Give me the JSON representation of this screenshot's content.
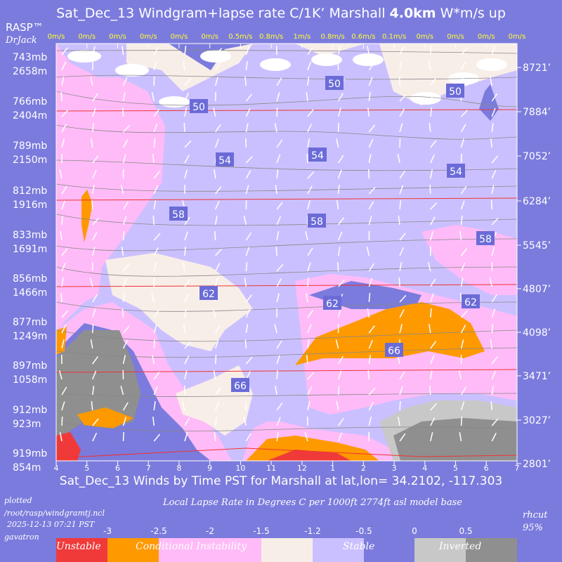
{
  "header": {
    "title_pre": "Sat_Dec_13 Windgram+lapse rate C/1K’  Marshall ",
    "title_bold": "4.0km",
    "title_post": "  W*m/s up",
    "brand": "RASP™",
    "brand_sub": "DrJack"
  },
  "footer": {
    "bottom_title": "Sat_Dec_13 Winds by Time PST for Marshall at lat,lon= 34.2102, -117.303",
    "plotted": "plotted",
    "path": "/root/rasp/windgramtj.ncl",
    "timestamp": "2025-12-13 07:21 PST",
    "host": "gavatron",
    "rhcut": "rhcut",
    "rhcut_val": "95%",
    "legend_title": "Local Lapse Rate in Degrees C per 1000ft  2774ft asl model base"
  },
  "legend": {
    "ticks": [
      "-3",
      "-2.5",
      "-2",
      "-1.5",
      "-1.2",
      "-0.5",
      "0",
      "0.5"
    ],
    "categories": [
      "Unstable",
      "Conditional Instability",
      "Stable",
      "Inverted"
    ],
    "colors": [
      "#f03a3a",
      "#ff9900",
      "#ffbbf7",
      "#f8eee8",
      "#cbc0ff",
      "#7b7bdd",
      "#c8c8c8",
      "#8f8f8f"
    ]
  },
  "chart_data": {
    "type": "heatmap",
    "title": "Sat_Dec_13 Windgram+lapse rate C/1K’ Marshall 4.0km W*m/s up",
    "x_ticks": [
      "4",
      "5",
      "6",
      "7",
      "8",
      "9",
      "10",
      "11",
      "12",
      "1",
      "2",
      "3",
      "4",
      "5",
      "6",
      "7"
    ],
    "top_wstar": [
      "0m/s",
      "0m/s",
      "0m/s",
      "0m/s",
      "0m/s",
      "0m/s",
      "0.5m/s",
      "0.8m/s",
      "1m/s",
      "0.8m/s",
      "0.6m/s",
      "0.1m/s",
      "0m/s",
      "0m/s",
      "0m/s",
      "0m/s"
    ],
    "left_levels": [
      {
        "mb": "743mb",
        "m": "2658m"
      },
      {
        "mb": "766mb",
        "m": "2404m"
      },
      {
        "mb": "789mb",
        "m": "2150m"
      },
      {
        "mb": "812mb",
        "m": "1916m"
      },
      {
        "mb": "833mb",
        "m": "1691m"
      },
      {
        "mb": "856mb",
        "m": "1466m"
      },
      {
        "mb": "877mb",
        "m": "1249m"
      },
      {
        "mb": "897mb",
        "m": "1058m"
      },
      {
        "mb": "912mb",
        "m": "923m"
      },
      {
        "mb": "919mb",
        "m": "854m"
      }
    ],
    "right_levels_ft": [
      "8721’",
      "7884’",
      "7052’",
      "6284’",
      "5545’",
      "4807’",
      "4098’",
      "3471’",
      "3027’",
      "2801’"
    ],
    "temp_labels": [
      "50",
      "50",
      "50",
      "54",
      "54",
      "54",
      "58",
      "58",
      "58",
      "62",
      "62",
      "62",
      "66",
      "66"
    ]
  }
}
